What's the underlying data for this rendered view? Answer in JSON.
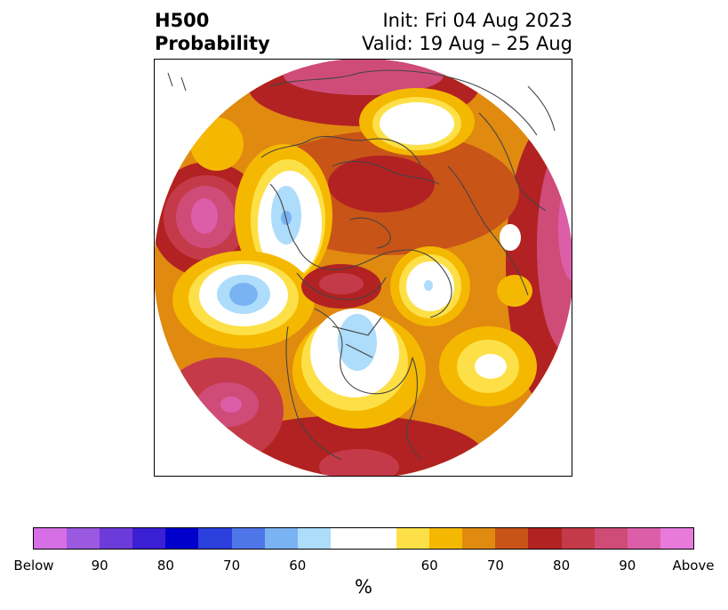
{
  "title": {
    "left_line1": "H500",
    "left_line2": "Probability",
    "right_line1": "Init: Fri 04 Aug 2023",
    "right_line2": "Valid: 19 Aug – 25 Aug"
  },
  "colorbar": {
    "unit": "%",
    "swatches": [
      {
        "name": "below-extreme",
        "color": "#d66fe6"
      },
      {
        "name": "below-90",
        "color": "#9b58e0"
      },
      {
        "name": "below-85",
        "color": "#6d3bd9"
      },
      {
        "name": "below-80",
        "color": "#3a1fd4"
      },
      {
        "name": "below-75",
        "color": "#0000cc"
      },
      {
        "name": "below-70",
        "color": "#2a3fdc"
      },
      {
        "name": "below-65",
        "color": "#4f76e8"
      },
      {
        "name": "below-60",
        "color": "#7ab3f2"
      },
      {
        "name": "below-55",
        "color": "#aedcfb"
      },
      {
        "name": "neutral",
        "color": "#ffffff"
      },
      {
        "name": "above-55",
        "color": "#fde047"
      },
      {
        "name": "above-60",
        "color": "#f5b800"
      },
      {
        "name": "above-65",
        "color": "#e08a10"
      },
      {
        "name": "above-70",
        "color": "#c85418"
      },
      {
        "name": "above-75",
        "color": "#b22222"
      },
      {
        "name": "above-80",
        "color": "#c53a48"
      },
      {
        "name": "above-85",
        "color": "#cf4c79"
      },
      {
        "name": "above-90",
        "color": "#dc5ea8"
      },
      {
        "name": "above-extreme",
        "color": "#e87adc"
      }
    ],
    "tick_labels": [
      "Below",
      "90",
      "80",
      "70",
      "60",
      "60",
      "70",
      "80",
      "90",
      "Above"
    ]
  },
  "map": {
    "projection": "north-polar-stereographic",
    "field_colors": {
      "white": "#ffffff",
      "yellow": "#fde047",
      "gold": "#f5b800",
      "orange": "#e08a10",
      "dark_orange": "#c85418",
      "red": "#b22222",
      "crimson": "#c53a48",
      "rose": "#cf4c79",
      "pink": "#dc5ea8",
      "magenta": "#e87adc",
      "light_blue": "#aedcfb",
      "mid_blue": "#7ab3f2",
      "blue": "#4f76e8"
    },
    "coastline_color": "#444444"
  }
}
